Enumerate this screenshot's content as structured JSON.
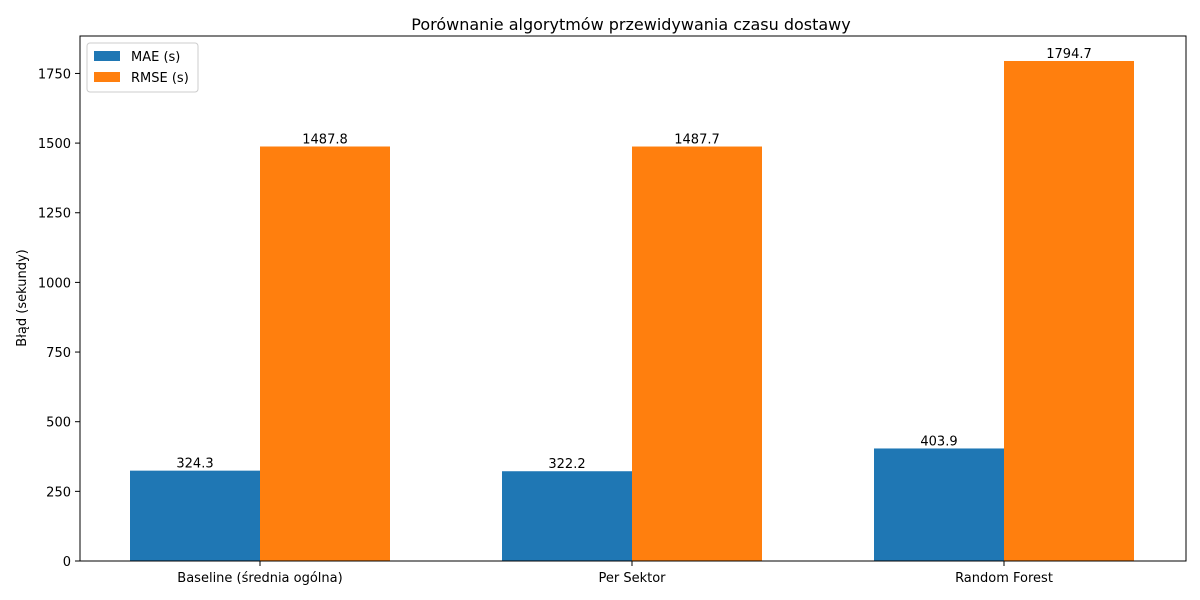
{
  "chart_data": {
    "type": "bar",
    "title": "Porównanie algorytmów przewidywania czasu dostawy",
    "xlabel": "",
    "ylabel": "Błąd (sekundy)",
    "categories": [
      "Baseline (średnia ogólna)",
      "Per Sektor",
      "Random Forest"
    ],
    "series": [
      {
        "name": "MAE (s)",
        "color": "#1f77b4",
        "values": [
          324.3,
          322.2,
          403.9
        ],
        "labels": [
          "324.3",
          "322.2",
          "403.9"
        ]
      },
      {
        "name": "RMSE (s)",
        "color": "#ff7f0e",
        "values": [
          1487.8,
          1487.7,
          1794.7
        ],
        "labels": [
          "1487.8",
          "1487.7",
          "1794.7"
        ]
      }
    ],
    "ylim": [
      0,
      1884.4
    ],
    "yticks": [
      0,
      250,
      500,
      750,
      1000,
      1250,
      1500,
      1750
    ],
    "legend": "top-left",
    "grid": false
  }
}
